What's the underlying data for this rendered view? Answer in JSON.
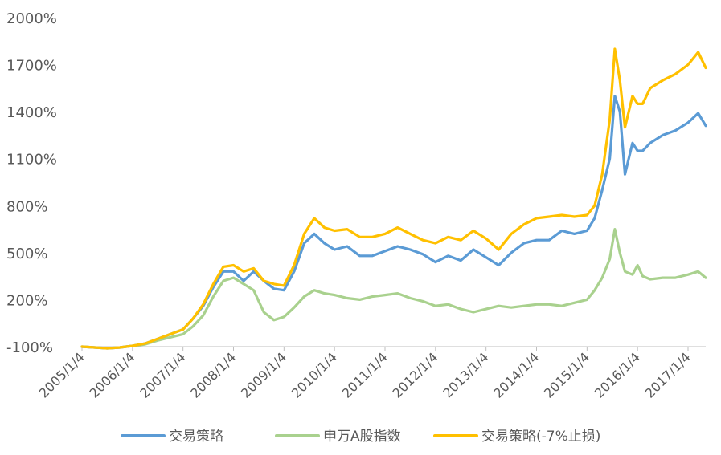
{
  "chart_data": {
    "type": "line",
    "title": "",
    "xlabel": "",
    "ylabel": "",
    "ylim": [
      -100,
      2000
    ],
    "yticks": [
      "2000%",
      "1700%",
      "1400%",
      "1100%",
      "800%",
      "500%",
      "200%",
      "-100%"
    ],
    "yticks_values": [
      2000,
      1700,
      1400,
      1100,
      800,
      500,
      200,
      -100
    ],
    "x_tick_labels": [
      "2005/1/4",
      "2006/1/4",
      "2007/1/4",
      "2008/1/4",
      "2009/1/4",
      "2010/1/4",
      "2011/1/4",
      "2012/1/4",
      "2013/1/4",
      "2014/1/4",
      "2015/1/4",
      "2016/1/4",
      "2017/1/4"
    ],
    "x_range": [
      2005.0,
      2017.35
    ],
    "grid": false,
    "legend_position": "bottom",
    "x": [
      2005.0,
      2005.25,
      2005.5,
      2005.75,
      2006.0,
      2006.25,
      2006.5,
      2006.75,
      2007.0,
      2007.2,
      2007.4,
      2007.6,
      2007.8,
      2008.0,
      2008.2,
      2008.4,
      2008.6,
      2008.8,
      2009.0,
      2009.2,
      2009.4,
      2009.6,
      2009.8,
      2010.0,
      2010.25,
      2010.5,
      2010.75,
      2011.0,
      2011.25,
      2011.5,
      2011.75,
      2012.0,
      2012.25,
      2012.5,
      2012.75,
      2013.0,
      2013.25,
      2013.5,
      2013.75,
      2014.0,
      2014.25,
      2014.5,
      2014.75,
      2015.0,
      2015.15,
      2015.3,
      2015.45,
      2015.55,
      2015.65,
      2015.75,
      2015.9,
      2016.0,
      2016.1,
      2016.25,
      2016.5,
      2016.75,
      2017.0,
      2017.2,
      2017.35
    ],
    "series": [
      {
        "name": "交易策略",
        "color": "#5B9BD5",
        "values": [
          -100,
          -105,
          -110,
          -105,
          -95,
          -80,
          -50,
          -20,
          10,
          80,
          160,
          280,
          380,
          380,
          320,
          380,
          320,
          270,
          260,
          380,
          560,
          620,
          560,
          520,
          540,
          480,
          480,
          510,
          540,
          520,
          490,
          440,
          480,
          450,
          520,
          470,
          420,
          500,
          560,
          580,
          580,
          640,
          620,
          640,
          720,
          900,
          1100,
          1500,
          1400,
          1000,
          1200,
          1150,
          1150,
          1200,
          1250,
          1280,
          1330,
          1390,
          1310
        ]
      },
      {
        "name": "申万A股指数",
        "color": "#A9D18E",
        "values": [
          -100,
          -105,
          -110,
          -105,
          -95,
          -85,
          -60,
          -40,
          -20,
          30,
          100,
          220,
          320,
          340,
          300,
          260,
          120,
          70,
          90,
          150,
          220,
          260,
          240,
          230,
          210,
          200,
          220,
          230,
          240,
          210,
          190,
          160,
          170,
          140,
          120,
          140,
          160,
          150,
          160,
          170,
          170,
          160,
          180,
          200,
          260,
          340,
          460,
          650,
          500,
          380,
          360,
          420,
          350,
          330,
          340,
          340,
          360,
          380,
          340
        ]
      },
      {
        "name": "交易策略(-7%止损)",
        "color": "#FFC000",
        "values": [
          -100,
          -105,
          -110,
          -105,
          -95,
          -80,
          -50,
          -20,
          10,
          80,
          170,
          300,
          410,
          420,
          380,
          400,
          320,
          300,
          290,
          420,
          620,
          720,
          660,
          640,
          650,
          600,
          600,
          620,
          660,
          620,
          580,
          560,
          600,
          580,
          640,
          590,
          520,
          620,
          680,
          720,
          730,
          740,
          730,
          740,
          800,
          1000,
          1350,
          1800,
          1600,
          1300,
          1500,
          1450,
          1450,
          1550,
          1600,
          1640,
          1700,
          1780,
          1680
        ]
      }
    ]
  }
}
